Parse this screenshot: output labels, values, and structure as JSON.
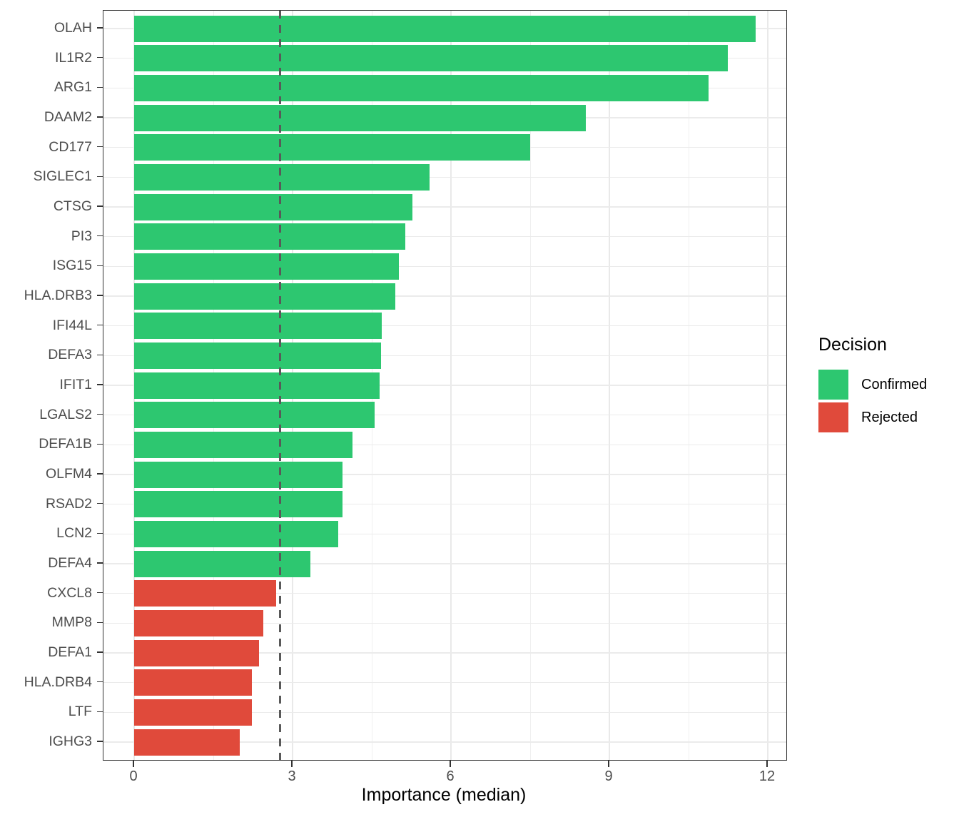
{
  "chart_data": {
    "type": "bar",
    "orientation": "horizontal",
    "title": "",
    "xlabel": "Importance (median)",
    "ylabel": "",
    "xlim": [
      0,
      12
    ],
    "x_ticks": [
      "0",
      "3",
      "6",
      "9",
      "12"
    ],
    "x_tick_values": [
      0,
      3,
      6,
      9,
      12
    ],
    "x_minor_gridlines": [
      1.5,
      4.5,
      7.5,
      10.5
    ],
    "grid": "on",
    "threshold_line": {
      "value": 2.76,
      "style": "dashed",
      "color": "#595959"
    },
    "categories": [
      "OLAH",
      "IL1R2",
      "ARG1",
      "DAAM2",
      "CD177",
      "SIGLEC1",
      "CTSG",
      "PI3",
      "ISG15",
      "HLA.DRB3",
      "IFI44L",
      "DEFA3",
      "IFIT1",
      "LGALS2",
      "DEFA1B",
      "OLFM4",
      "RSAD2",
      "LCN2",
      "DEFA4",
      "CXCL8",
      "MMP8",
      "DEFA1",
      "HLA.DRB4",
      "LTF",
      "IGHG3"
    ],
    "values": [
      11.77,
      11.24,
      10.88,
      8.56,
      7.5,
      5.6,
      5.27,
      5.14,
      5.01,
      4.95,
      4.69,
      4.67,
      4.65,
      4.56,
      4.14,
      3.95,
      3.94,
      3.86,
      3.34,
      2.69,
      2.44,
      2.36,
      2.23,
      2.23,
      2.0
    ],
    "decisions": [
      "Confirmed",
      "Confirmed",
      "Confirmed",
      "Confirmed",
      "Confirmed",
      "Confirmed",
      "Confirmed",
      "Confirmed",
      "Confirmed",
      "Confirmed",
      "Confirmed",
      "Confirmed",
      "Confirmed",
      "Confirmed",
      "Confirmed",
      "Confirmed",
      "Confirmed",
      "Confirmed",
      "Confirmed",
      "Rejected",
      "Rejected",
      "Rejected",
      "Rejected",
      "Rejected",
      "Rejected"
    ],
    "legend": {
      "title": "Decision",
      "position": "right",
      "items": [
        {
          "label": "Confirmed",
          "color": "#2DC770"
        },
        {
          "label": "Rejected",
          "color": "#E04A3B"
        }
      ]
    },
    "colors": {
      "confirmed": "#2DC770",
      "rejected": "#E04A3B",
      "grid_major": "#e9e9e9",
      "grid_minor": "#f0f0f0",
      "panel_border": "#333333",
      "axis_text": "#4d4d4d",
      "threshold": "#595959"
    }
  }
}
